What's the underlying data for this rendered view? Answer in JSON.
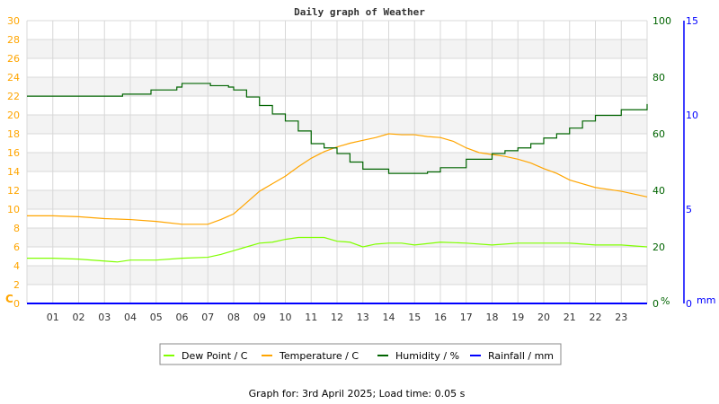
{
  "chart_data": {
    "type": "line",
    "title": "Daily graph of Weather",
    "x_ticks": [
      "01",
      "02",
      "03",
      "04",
      "05",
      "06",
      "07",
      "08",
      "09",
      "10",
      "11",
      "12",
      "13",
      "14",
      "15",
      "16",
      "17",
      "18",
      "19",
      "20",
      "21",
      "22",
      "23"
    ],
    "xlim": [
      0,
      24
    ],
    "grid": true,
    "legend_placement": "bottom",
    "axes": {
      "left": {
        "label": "C",
        "ylim": [
          0,
          30
        ],
        "ticks": [
          0,
          2,
          4,
          6,
          8,
          10,
          12,
          14,
          16,
          18,
          20,
          22,
          24,
          26,
          28,
          30
        ],
        "color": "#ffa500"
      },
      "right": {
        "label": "%",
        "ylim": [
          0,
          100
        ],
        "ticks": [
          0,
          20,
          40,
          60,
          80,
          100
        ],
        "color": "#006400"
      },
      "rain": {
        "label": "mm",
        "ylim": [
          0,
          15
        ],
        "ticks": [
          0,
          5,
          10,
          15
        ],
        "color": "#0000ff"
      }
    },
    "series": [
      {
        "name": "Dew Point / C",
        "axis": "left",
        "color": "#80ff00",
        "x": [
          0,
          1,
          2,
          3,
          3.5,
          4,
          5,
          6,
          7,
          7.5,
          8,
          8.5,
          9,
          9.5,
          10,
          10.5,
          11,
          11.5,
          12,
          12.5,
          13,
          13.5,
          14,
          14.5,
          15,
          16,
          17,
          18,
          19,
          20,
          21,
          22,
          23,
          24
        ],
        "y": [
          4.8,
          4.8,
          4.7,
          4.5,
          4.4,
          4.6,
          4.6,
          4.8,
          4.9,
          5.2,
          5.6,
          6.0,
          6.4,
          6.5,
          6.8,
          7.0,
          7.0,
          7.0,
          6.6,
          6.5,
          6.0,
          6.3,
          6.4,
          6.4,
          6.2,
          6.5,
          6.4,
          6.2,
          6.4,
          6.4,
          6.4,
          6.2,
          6.2,
          6.0
        ]
      },
      {
        "name": "Temperature / C",
        "axis": "left",
        "color": "#ffa500",
        "x": [
          0,
          1,
          2,
          3,
          4,
          5,
          6,
          7,
          7.5,
          8,
          8.5,
          9,
          9.5,
          10,
          10.5,
          11,
          11.5,
          12,
          12.5,
          13,
          13.5,
          14,
          14.5,
          15,
          15.5,
          16,
          16.5,
          17,
          17.5,
          18,
          18.5,
          19,
          19.5,
          20,
          20.5,
          21,
          21.5,
          22,
          22.5,
          23,
          23.5,
          24
        ],
        "y": [
          9.3,
          9.3,
          9.2,
          9.0,
          8.9,
          8.7,
          8.4,
          8.4,
          8.9,
          9.5,
          10.7,
          11.9,
          12.7,
          13.5,
          14.5,
          15.4,
          16.1,
          16.6,
          17.0,
          17.3,
          17.6,
          18.0,
          17.9,
          17.9,
          17.7,
          17.6,
          17.2,
          16.5,
          16.0,
          15.8,
          15.6,
          15.3,
          14.9,
          14.3,
          13.8,
          13.1,
          12.7,
          12.3,
          12.1,
          11.9,
          11.6,
          11.3
        ]
      },
      {
        "name": "Humidity / %",
        "axis": "right",
        "color": "#006400",
        "x": [
          0,
          3.5,
          3.7,
          4.5,
          4.8,
          5.5,
          5.8,
          6,
          7,
          7.1,
          7.8,
          8,
          8.5,
          9,
          9.5,
          10,
          10.5,
          11,
          11.5,
          12,
          12.5,
          13,
          14,
          15,
          15.5,
          16,
          17,
          18,
          18.5,
          19,
          19.5,
          20,
          20.5,
          21,
          21.5,
          22,
          23,
          24
        ],
        "y": [
          73.3,
          73.3,
          74,
          74,
          75.5,
          75.5,
          76.5,
          77.8,
          77.8,
          77,
          76.5,
          75.5,
          73,
          70,
          67,
          64.5,
          61,
          56.5,
          55,
          53,
          50,
          47.5,
          46,
          46,
          46.5,
          48,
          51,
          53,
          54,
          55,
          56.5,
          58.5,
          60,
          62,
          64.5,
          66.5,
          68.5,
          70.5
        ]
      },
      {
        "name": "Rainfall / mm",
        "axis": "rain",
        "color": "#0000ff",
        "x": [
          0,
          24
        ],
        "y": [
          0,
          0
        ]
      }
    ]
  },
  "footer": "Graph for: 3rd April 2025; Load time: 0.05 s"
}
